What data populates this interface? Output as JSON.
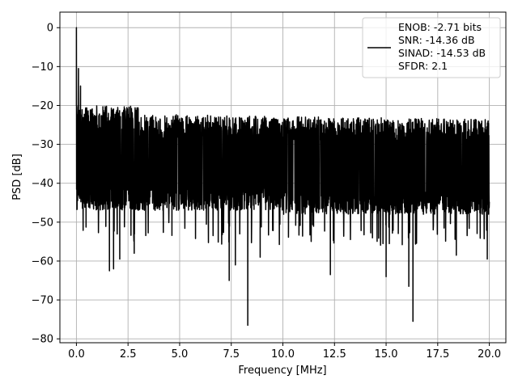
{
  "chart_data": {
    "type": "line",
    "xlabel": "Frequency [MHz]",
    "ylabel": "PSD [dB]",
    "xlim": [
      -0.8,
      20.8
    ],
    "ylim": [
      -81,
      4
    ],
    "xticks": [
      0.0,
      2.5,
      5.0,
      7.5,
      10.0,
      12.5,
      15.0,
      17.5,
      20.0
    ],
    "xtick_labels": [
      "0.0",
      "2.5",
      "5.0",
      "7.5",
      "10.0",
      "12.5",
      "15.0",
      "17.5",
      "20.0"
    ],
    "yticks": [
      0,
      -10,
      -20,
      -30,
      -40,
      -50,
      -60,
      -70,
      -80
    ],
    "ytick_labels": [
      "0",
      "−10",
      "−20",
      "−30",
      "−40",
      "−50",
      "−60",
      "−70",
      "−80"
    ],
    "grid": true,
    "legend_position": "top-right",
    "series": [
      {
        "name": "ENOB: -2.71 bits\nSNR: -14.36 dB\nSINAD: -14.53 dB\nSFDR: 2.1",
        "legend_lines": [
          "ENOB: -2.71 bits",
          "SNR: -14.36 dB",
          "SINAD: -14.53 dB",
          "SFDR: 2.1"
        ],
        "color": "#000000",
        "x_range": [
          0.0,
          20.0
        ],
        "noise_floor_mean_db": -33,
        "upper_envelope_db": -22,
        "lower_envelope_db": -47,
        "peaks": [
          {
            "x": 0.0,
            "y": 0.0
          },
          {
            "x": 0.1,
            "y": -10.5
          },
          {
            "x": 0.2,
            "y": -15.0
          }
        ],
        "dips": [
          {
            "x": 1.6,
            "y": -62.5
          },
          {
            "x": 1.8,
            "y": -62.0
          },
          {
            "x": 2.1,
            "y": -59.5
          },
          {
            "x": 2.8,
            "y": -58.0
          },
          {
            "x": 7.4,
            "y": -65.0
          },
          {
            "x": 7.7,
            "y": -61.0
          },
          {
            "x": 8.3,
            "y": -76.5
          },
          {
            "x": 8.9,
            "y": -59.0
          },
          {
            "x": 12.3,
            "y": -63.5
          },
          {
            "x": 15.0,
            "y": -64.0
          },
          {
            "x": 16.1,
            "y": -66.5
          },
          {
            "x": 16.3,
            "y": -75.5
          },
          {
            "x": 18.4,
            "y": -58.5
          },
          {
            "x": 19.9,
            "y": -59.5
          }
        ]
      }
    ]
  },
  "colors": {
    "line": "#000000",
    "grid": "#b0b0b0",
    "legend_border": "#cccccc"
  }
}
